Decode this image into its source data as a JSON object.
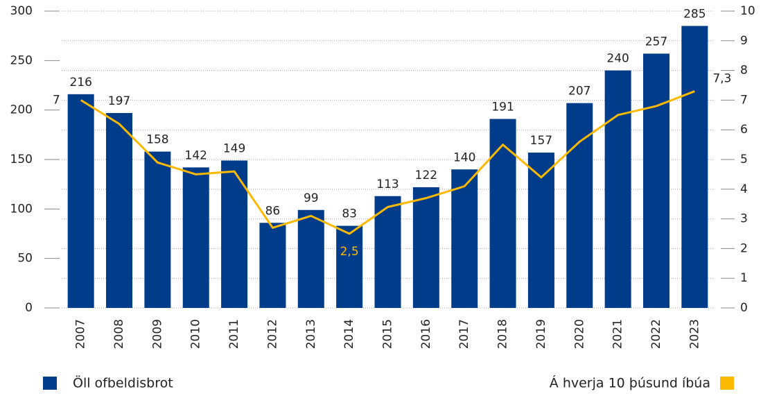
{
  "chart_data": {
    "type": "bar-line",
    "categories": [
      "2007",
      "2008",
      "2009",
      "2010",
      "2011",
      "2012",
      "2013",
      "2014",
      "2015",
      "2016",
      "2017",
      "2018",
      "2019",
      "2020",
      "2021",
      "2022",
      "2023"
    ],
    "series": [
      {
        "name": "Öll ofbeldisbrot",
        "type": "bar",
        "color": "#003c8a",
        "axis": "y",
        "values": [
          216,
          197,
          158,
          142,
          149,
          86,
          99,
          83,
          113,
          122,
          140,
          191,
          157,
          207,
          240,
          257,
          285
        ]
      },
      {
        "name": "Á hverja 10 þúsund íbúa",
        "type": "line",
        "color": "#fbba00",
        "axis": "y2",
        "values": [
          7,
          6.2,
          4.9,
          4.5,
          4.6,
          2.7,
          3.1,
          2.5,
          3.4,
          3.7,
          4.1,
          5.5,
          4.4,
          5.6,
          6.5,
          6.8,
          7.3
        ],
        "value_labels": [
          "7",
          null,
          null,
          null,
          null,
          null,
          null,
          "2,5",
          null,
          null,
          null,
          null,
          null,
          null,
          null,
          null,
          "7,3"
        ]
      }
    ],
    "ylim": [
      0,
      300
    ],
    "yticks": [
      0,
      50,
      100,
      150,
      200,
      250,
      300
    ],
    "y2lim": [
      0,
      10
    ],
    "y2ticks": [
      0,
      1,
      2,
      3,
      4,
      5,
      6,
      7,
      8,
      9,
      10
    ],
    "grid": true
  }
}
